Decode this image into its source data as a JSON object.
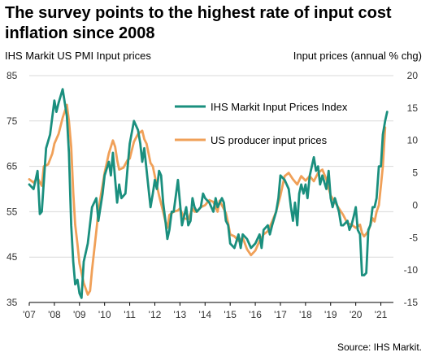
{
  "title_lines": [
    "The survey points to the highest rate of input cost",
    "inflation since 2008"
  ],
  "ylabel_left": "IHS Markit US PMI Input prices",
  "ylabel_right": "Input prices (annual % chg)",
  "source": "Source: IHS Markit.",
  "chart_data": {
    "type": "line",
    "x_unit": "year",
    "xlim": [
      2007,
      2021.5
    ],
    "xticks": [
      2007,
      2008,
      2009,
      2010,
      2011,
      2012,
      2013,
      2014,
      2015,
      2016,
      2017,
      2018,
      2019,
      2020,
      2021
    ],
    "xtick_labels": [
      "'07",
      "'08",
      "'09",
      "'10",
      "'11",
      "'12",
      "'13",
      "'14",
      "'15",
      "'16",
      "'17",
      "'18",
      "'19",
      "'20",
      "'21"
    ],
    "y_left": {
      "min": 35,
      "max": 85,
      "ticks": [
        35,
        45,
        55,
        65,
        75,
        85
      ]
    },
    "y_right": {
      "min": -15,
      "max": 20,
      "ticks": [
        -15,
        -10,
        -5,
        0,
        5,
        10,
        15,
        20
      ]
    },
    "grid": true,
    "legend_position": "top-right",
    "series": [
      {
        "name": "IHS Markit Input Prices Index",
        "axis": "left",
        "color": "#1a8f7e",
        "points": [
          [
            2007.0,
            61
          ],
          [
            2007.17,
            60
          ],
          [
            2007.33,
            64
          ],
          [
            2007.42,
            54.5
          ],
          [
            2007.5,
            55
          ],
          [
            2007.67,
            69
          ],
          [
            2007.83,
            72
          ],
          [
            2008.0,
            79.5
          ],
          [
            2008.08,
            77
          ],
          [
            2008.17,
            79
          ],
          [
            2008.33,
            82
          ],
          [
            2008.5,
            76
          ],
          [
            2008.58,
            68
          ],
          [
            2008.67,
            52
          ],
          [
            2008.75,
            44
          ],
          [
            2008.83,
            39
          ],
          [
            2008.92,
            40
          ],
          [
            2009.0,
            37
          ],
          [
            2009.08,
            36
          ],
          [
            2009.17,
            44
          ],
          [
            2009.33,
            48
          ],
          [
            2009.5,
            56
          ],
          [
            2009.67,
            58
          ],
          [
            2009.75,
            53
          ],
          [
            2009.92,
            59
          ],
          [
            2010.0,
            63
          ],
          [
            2010.17,
            66
          ],
          [
            2010.25,
            63
          ],
          [
            2010.33,
            68
          ],
          [
            2010.42,
            62
          ],
          [
            2010.5,
            57
          ],
          [
            2010.58,
            61
          ],
          [
            2010.67,
            58
          ],
          [
            2010.83,
            59
          ],
          [
            2010.92,
            65
          ],
          [
            2011.0,
            70
          ],
          [
            2011.17,
            75
          ],
          [
            2011.33,
            73
          ],
          [
            2011.42,
            70
          ],
          [
            2011.5,
            66
          ],
          [
            2011.58,
            69
          ],
          [
            2011.75,
            60
          ],
          [
            2011.83,
            56
          ],
          [
            2011.92,
            59
          ],
          [
            2012.0,
            62
          ],
          [
            2012.08,
            60
          ],
          [
            2012.17,
            64
          ],
          [
            2012.25,
            63
          ],
          [
            2012.33,
            57
          ],
          [
            2012.42,
            53
          ],
          [
            2012.5,
            49
          ],
          [
            2012.58,
            51
          ],
          [
            2012.67,
            55
          ],
          [
            2012.75,
            55
          ],
          [
            2012.92,
            62
          ],
          [
            2013.0,
            57
          ],
          [
            2013.08,
            52
          ],
          [
            2013.25,
            56
          ],
          [
            2013.33,
            52
          ],
          [
            2013.42,
            53
          ],
          [
            2013.5,
            58
          ],
          [
            2013.58,
            56
          ],
          [
            2013.67,
            55
          ],
          [
            2013.83,
            56
          ],
          [
            2013.92,
            59
          ],
          [
            2014.0,
            58
          ],
          [
            2014.17,
            57
          ],
          [
            2014.33,
            55
          ],
          [
            2014.42,
            58
          ],
          [
            2014.5,
            56
          ],
          [
            2014.67,
            58
          ],
          [
            2014.75,
            57
          ],
          [
            2014.83,
            53
          ],
          [
            2014.92,
            52
          ],
          [
            2015.0,
            48
          ],
          [
            2015.17,
            47
          ],
          [
            2015.33,
            50
          ],
          [
            2015.42,
            47
          ],
          [
            2015.5,
            50
          ],
          [
            2015.67,
            49
          ],
          [
            2015.83,
            47
          ],
          [
            2016.0,
            48
          ],
          [
            2016.17,
            50
          ],
          [
            2016.25,
            47
          ],
          [
            2016.33,
            51
          ],
          [
            2016.5,
            52
          ],
          [
            2016.58,
            50
          ],
          [
            2016.67,
            52
          ],
          [
            2016.83,
            55
          ],
          [
            2016.92,
            58
          ],
          [
            2017.0,
            63
          ],
          [
            2017.17,
            62
          ],
          [
            2017.33,
            60
          ],
          [
            2017.42,
            56
          ],
          [
            2017.5,
            53
          ],
          [
            2017.58,
            57
          ],
          [
            2017.67,
            52
          ],
          [
            2017.75,
            59
          ],
          [
            2017.83,
            61
          ],
          [
            2017.92,
            59
          ],
          [
            2018.0,
            61
          ],
          [
            2018.08,
            58
          ],
          [
            2018.17,
            63
          ],
          [
            2018.33,
            67
          ],
          [
            2018.42,
            64
          ],
          [
            2018.5,
            65
          ],
          [
            2018.58,
            61
          ],
          [
            2018.67,
            63
          ],
          [
            2018.83,
            60
          ],
          [
            2018.92,
            64
          ],
          [
            2019.0,
            58
          ],
          [
            2019.08,
            56
          ],
          [
            2019.17,
            58
          ],
          [
            2019.33,
            55
          ],
          [
            2019.42,
            52
          ],
          [
            2019.5,
            52
          ],
          [
            2019.67,
            53
          ],
          [
            2019.75,
            51
          ],
          [
            2019.83,
            52
          ],
          [
            2019.92,
            54
          ],
          [
            2020.0,
            56
          ],
          [
            2020.08,
            51
          ],
          [
            2020.17,
            50
          ],
          [
            2020.25,
            41
          ],
          [
            2020.33,
            41
          ],
          [
            2020.42,
            41.5
          ],
          [
            2020.5,
            51
          ],
          [
            2020.58,
            52
          ],
          [
            2020.67,
            56
          ],
          [
            2020.75,
            56
          ],
          [
            2020.83,
            58
          ],
          [
            2020.92,
            65
          ],
          [
            2021.0,
            65
          ],
          [
            2021.08,
            72
          ],
          [
            2021.17,
            75
          ],
          [
            2021.25,
            77
          ]
        ]
      },
      {
        "name": "US producer input prices",
        "axis": "right",
        "color": "#f0a058",
        "points": [
          [
            2007.0,
            4
          ],
          [
            2007.17,
            3.5
          ],
          [
            2007.33,
            4.2
          ],
          [
            2007.5,
            3
          ],
          [
            2007.58,
            6
          ],
          [
            2007.75,
            6.3
          ],
          [
            2007.92,
            8
          ],
          [
            2008.0,
            9.5
          ],
          [
            2008.17,
            11
          ],
          [
            2008.33,
            13.5
          ],
          [
            2008.5,
            15.5
          ],
          [
            2008.58,
            13
          ],
          [
            2008.67,
            9
          ],
          [
            2008.75,
            2
          ],
          [
            2008.83,
            -3
          ],
          [
            2008.92,
            -6
          ],
          [
            2009.0,
            -9
          ],
          [
            2009.17,
            -12
          ],
          [
            2009.33,
            -13.8
          ],
          [
            2009.42,
            -13.2
          ],
          [
            2009.5,
            -10
          ],
          [
            2009.67,
            -4
          ],
          [
            2009.75,
            -1
          ],
          [
            2009.83,
            1
          ],
          [
            2010.0,
            5
          ],
          [
            2010.17,
            8
          ],
          [
            2010.33,
            10
          ],
          [
            2010.42,
            9
          ],
          [
            2010.5,
            7
          ],
          [
            2010.58,
            5.5
          ],
          [
            2010.75,
            5.8
          ],
          [
            2010.92,
            7
          ],
          [
            2011.0,
            7.2
          ],
          [
            2011.17,
            9.8
          ],
          [
            2011.33,
            11
          ],
          [
            2011.5,
            11.5
          ],
          [
            2011.58,
            10.2
          ],
          [
            2011.67,
            9.5
          ],
          [
            2011.83,
            6.5
          ],
          [
            2011.92,
            6
          ],
          [
            2012.0,
            4.5
          ],
          [
            2012.17,
            1.5
          ],
          [
            2012.33,
            -1
          ],
          [
            2012.42,
            -2.5
          ],
          [
            2012.5,
            -3.5
          ],
          [
            2012.58,
            -1.5
          ],
          [
            2012.75,
            -1
          ],
          [
            2012.92,
            -0.8
          ],
          [
            2013.0,
            -0.5
          ],
          [
            2013.17,
            -2
          ],
          [
            2013.33,
            -2.2
          ],
          [
            2013.5,
            -0.5
          ],
          [
            2013.58,
            -1
          ],
          [
            2013.67,
            -1
          ],
          [
            2013.83,
            -0.3
          ],
          [
            2014.0,
            0
          ],
          [
            2014.17,
            0.8
          ],
          [
            2014.33,
            0.5
          ],
          [
            2014.5,
            -1
          ],
          [
            2014.58,
            0.7
          ],
          [
            2014.67,
            0
          ],
          [
            2014.83,
            -1.2
          ],
          [
            2014.92,
            -2.8
          ],
          [
            2015.0,
            -4.5
          ],
          [
            2015.17,
            -4.8
          ],
          [
            2015.33,
            -5.5
          ],
          [
            2015.5,
            -5
          ],
          [
            2015.67,
            -6.8
          ],
          [
            2015.83,
            -7.7
          ],
          [
            2016.0,
            -7
          ],
          [
            2016.17,
            -5.5
          ],
          [
            2016.33,
            -4.5
          ],
          [
            2016.5,
            -4
          ],
          [
            2016.67,
            -2.5
          ],
          [
            2016.83,
            -1
          ],
          [
            2017.0,
            1.5
          ],
          [
            2017.17,
            4.5
          ],
          [
            2017.33,
            5
          ],
          [
            2017.5,
            4
          ],
          [
            2017.67,
            3.2
          ],
          [
            2017.83,
            4.5
          ],
          [
            2018.0,
            3.8
          ],
          [
            2018.17,
            4.5
          ],
          [
            2018.33,
            3.7
          ],
          [
            2018.5,
            5
          ],
          [
            2018.67,
            5.5
          ],
          [
            2018.83,
            4
          ],
          [
            2019.0,
            1.5
          ],
          [
            2019.17,
            0.5
          ],
          [
            2019.33,
            -0.5
          ],
          [
            2019.5,
            -1.5
          ],
          [
            2019.67,
            -2.8
          ],
          [
            2019.83,
            -3
          ],
          [
            2020.0,
            -3.5
          ],
          [
            2020.17,
            -3
          ],
          [
            2020.25,
            -4.3
          ],
          [
            2020.33,
            -4.8
          ],
          [
            2020.5,
            -4
          ],
          [
            2020.67,
            -2
          ],
          [
            2020.75,
            -2.5
          ],
          [
            2020.83,
            -1
          ],
          [
            2020.92,
            0
          ],
          [
            2021.0,
            3
          ],
          [
            2021.08,
            6
          ],
          [
            2021.17,
            12
          ]
        ]
      }
    ]
  }
}
